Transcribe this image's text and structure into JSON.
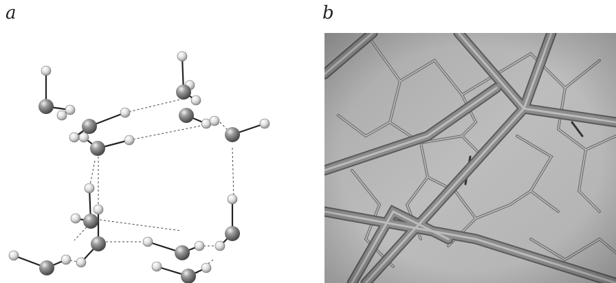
{
  "panels": {
    "a": {
      "label": "a"
    },
    "b": {
      "label": "b"
    }
  },
  "colors": {
    "atom_large": "#7a7a7a",
    "atom_small": "#d8d8d8",
    "bond": "#222222",
    "hbond": "#444444",
    "render_bg": "#b4b4b4",
    "tube": "#8c8c8c",
    "tube_thin": "#9a9a9a"
  }
}
